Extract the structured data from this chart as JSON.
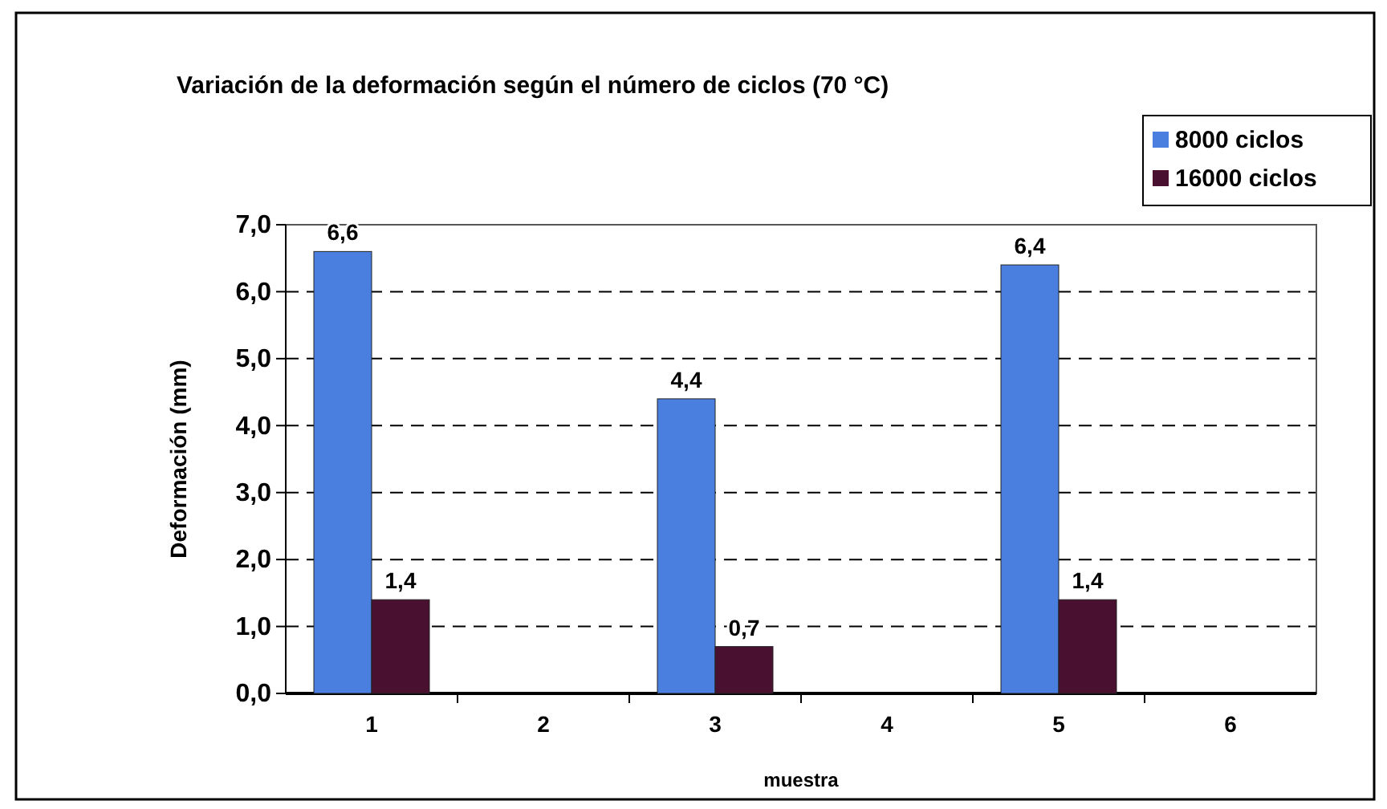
{
  "chart_data": {
    "type": "bar",
    "title": "Variación de la deformación según el número de ciclos (70 °C)",
    "xlabel": "muestra",
    "ylabel": "Deformación (mm)",
    "categories": [
      "1",
      "2",
      "3",
      "4",
      "5",
      "6"
    ],
    "series": [
      {
        "name": "8000 ciclos",
        "color": "#4a7fe0",
        "values": [
          6.6,
          null,
          4.4,
          null,
          6.4,
          null
        ],
        "value_labels": [
          "6,6",
          null,
          "4,4",
          null,
          "6,4",
          null
        ]
      },
      {
        "name": "16000 ciclos",
        "color": "#4a1030",
        "values": [
          1.4,
          null,
          0.7,
          null,
          1.4,
          null
        ],
        "value_labels": [
          "1,4",
          null,
          "0,7",
          null,
          "1,4",
          null
        ]
      }
    ],
    "ylim": [
      0,
      7
    ],
    "yticks": [
      {
        "value": 0,
        "label": "0,0"
      },
      {
        "value": 1,
        "label": "1,0"
      },
      {
        "value": 2,
        "label": "2,0"
      },
      {
        "value": 3,
        "label": "3,0"
      },
      {
        "value": 4,
        "label": "4,0"
      },
      {
        "value": 5,
        "label": "5,0"
      },
      {
        "value": 6,
        "label": "6,0"
      },
      {
        "value": 7,
        "label": "7,0"
      }
    ],
    "grid": "y",
    "legend": "top right"
  }
}
